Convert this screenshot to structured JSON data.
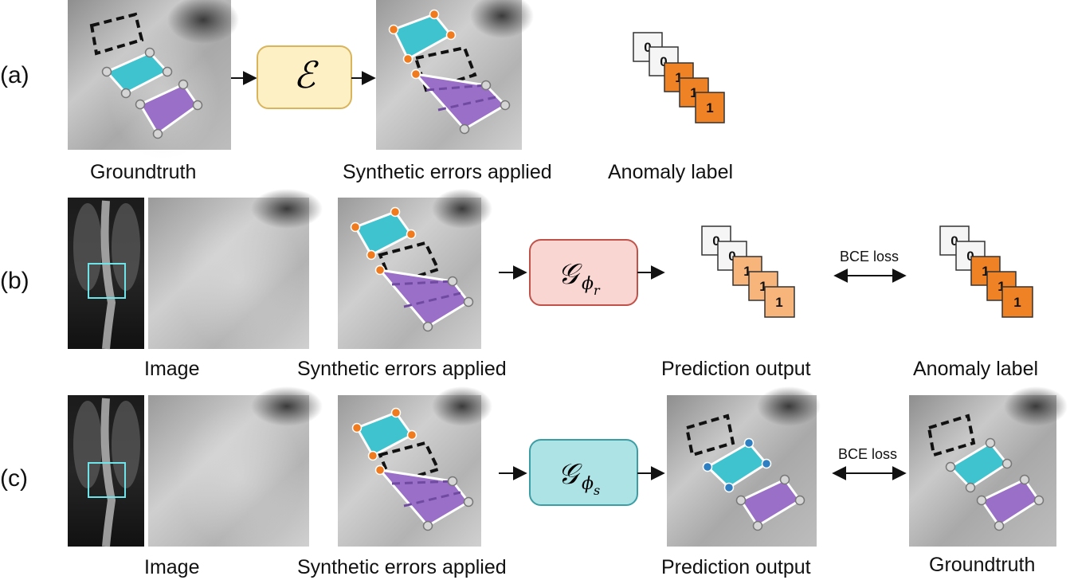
{
  "rows": [
    {
      "id": "a",
      "label": "(a)"
    },
    {
      "id": "b",
      "label": "(b)"
    },
    {
      "id": "c",
      "label": "(c)"
    }
  ],
  "captions": {
    "a": [
      "Groundtruth",
      "Synthetic errors applied",
      "Anomaly label"
    ],
    "b": [
      "Image",
      "Synthetic errors applied",
      "Prediction output",
      "Anomaly label"
    ],
    "c": [
      "Image",
      "Synthetic errors applied",
      "Prediction output",
      "Groundtruth"
    ]
  },
  "boxes": {
    "error_fn": {
      "symbol": "ℰ"
    },
    "G_r": {
      "main": "𝒢",
      "sub": "ϕ",
      "subsub": "r"
    },
    "G_s": {
      "main": "𝒢",
      "sub": "ϕ",
      "subsub": "s"
    }
  },
  "loss_label": "BCE loss",
  "stack_digits": [
    "0",
    "0",
    "1",
    "1",
    "1"
  ],
  "colors": {
    "cyan": "#3ec3cf",
    "purple": "#9a6fc8",
    "orange_dot": "#f07a1e",
    "blue_dot": "#2e7fc2",
    "label_full": "#f08226",
    "label_pred": "#f7b57c",
    "box_e_fill": "#fdf0c4",
    "box_e_stroke": "#d9b45a",
    "box_r_fill": "#f9d6d2",
    "box_r_stroke": "#c0524a",
    "box_s_fill": "#aee3e6",
    "box_s_stroke": "#3a9ea4"
  }
}
